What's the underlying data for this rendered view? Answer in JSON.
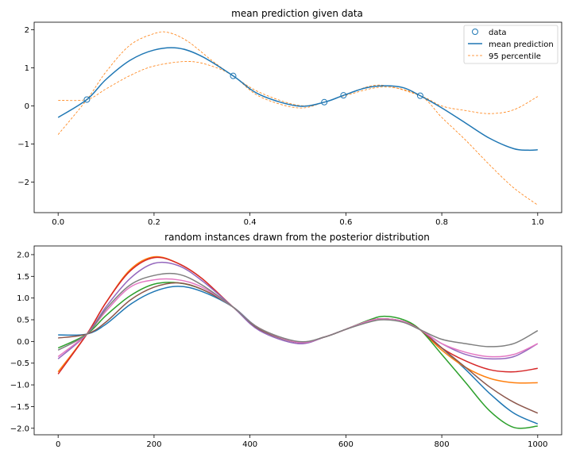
{
  "chart_data": [
    {
      "type": "line",
      "title": "mean prediction given data",
      "xlim": [
        -0.05,
        1.05
      ],
      "ylim": [
        -2.8,
        2.2
      ],
      "xticks": [
        0.0,
        0.2,
        0.4,
        0.6,
        0.8,
        1.0
      ],
      "xtick_labels": [
        "0.0",
        "0.2",
        "0.4",
        "0.6",
        "0.8",
        "1.0"
      ],
      "yticks": [
        -2,
        -1,
        0,
        1,
        2
      ],
      "ytick_labels": [
        "−2",
        "−1",
        "0",
        "1",
        "2"
      ],
      "legend_position": "top-right",
      "colors": {
        "mean": "#1f77b4",
        "percentile": "#ff7f0e"
      },
      "data_points": {
        "name": "data",
        "x": [
          0.06,
          0.365,
          0.555,
          0.595,
          0.755
        ],
        "y": [
          0.17,
          0.79,
          0.1,
          0.28,
          0.27
        ]
      },
      "mean": {
        "name": "mean prediction",
        "x": [
          0.0,
          0.06,
          0.1,
          0.15,
          0.2,
          0.25,
          0.3,
          0.365,
          0.42,
          0.5,
          0.555,
          0.595,
          0.64,
          0.68,
          0.72,
          0.755,
          0.8,
          0.85,
          0.9,
          0.95,
          0.98,
          1.0
        ],
        "y": [
          -0.3,
          0.17,
          0.7,
          1.2,
          1.47,
          1.52,
          1.3,
          0.79,
          0.3,
          0.0,
          0.1,
          0.28,
          0.47,
          0.53,
          0.48,
          0.27,
          -0.05,
          -0.45,
          -0.85,
          -1.12,
          -1.16,
          -1.15
        ]
      },
      "upper": {
        "name": "95 percentile",
        "x": [
          0.0,
          0.06,
          0.1,
          0.15,
          0.2,
          0.23,
          0.27,
          0.32,
          0.365,
          0.42,
          0.5,
          0.555,
          0.6,
          0.67,
          0.755,
          0.8,
          0.85,
          0.9,
          0.95,
          1.0
        ],
        "y": [
          -0.75,
          0.17,
          0.9,
          1.6,
          1.9,
          1.93,
          1.7,
          1.2,
          0.79,
          0.36,
          0.02,
          0.1,
          0.3,
          0.55,
          0.27,
          0.0,
          -0.12,
          -0.2,
          -0.1,
          0.25
        ]
      },
      "lower": {
        "name": "95 percentile",
        "x": [
          0.0,
          0.06,
          0.1,
          0.15,
          0.2,
          0.27,
          0.32,
          0.365,
          0.42,
          0.5,
          0.555,
          0.6,
          0.68,
          0.755,
          0.8,
          0.85,
          0.9,
          0.95,
          1.0
        ],
        "y": [
          0.15,
          0.17,
          0.45,
          0.8,
          1.05,
          1.17,
          1.05,
          0.79,
          0.25,
          -0.05,
          0.1,
          0.28,
          0.5,
          0.27,
          -0.3,
          -0.9,
          -1.55,
          -2.15,
          -2.6
        ]
      }
    },
    {
      "type": "line",
      "title": "random instances drawn from the posterior distribution",
      "xlim": [
        -50,
        1050
      ],
      "ylim": [
        -2.15,
        2.2
      ],
      "xticks": [
        0,
        200,
        400,
        600,
        800,
        1000
      ],
      "xtick_labels": [
        "0",
        "200",
        "400",
        "600",
        "800",
        "1000"
      ],
      "yticks": [
        -2.0,
        -1.5,
        -1.0,
        -0.5,
        0.0,
        0.5,
        1.0,
        1.5,
        2.0
      ],
      "ytick_labels": [
        "−2.0",
        "−1.5",
        "−1.0",
        "−0.5",
        "0.0",
        "0.5",
        "1.0",
        "1.5",
        "2.0"
      ],
      "x": [
        0,
        60,
        100,
        150,
        200,
        250,
        300,
        365,
        420,
        500,
        555,
        600,
        650,
        680,
        720,
        755,
        800,
        850,
        900,
        950,
        1000
      ],
      "series": [
        {
          "color": "#1f77b4",
          "values": [
            0.15,
            0.17,
            0.4,
            0.85,
            1.15,
            1.27,
            1.15,
            0.79,
            0.3,
            -0.02,
            0.1,
            0.28,
            0.48,
            0.52,
            0.46,
            0.27,
            -0.15,
            -0.65,
            -1.2,
            -1.65,
            -1.9
          ]
        },
        {
          "color": "#ff7f0e",
          "values": [
            -0.7,
            0.17,
            0.9,
            1.65,
            1.95,
            1.8,
            1.45,
            0.79,
            0.3,
            -0.02,
            0.1,
            0.28,
            0.48,
            0.52,
            0.46,
            0.27,
            -0.2,
            -0.6,
            -0.85,
            -0.95,
            -0.95
          ]
        },
        {
          "color": "#2ca02c",
          "values": [
            -0.15,
            0.17,
            0.6,
            1.05,
            1.32,
            1.35,
            1.2,
            0.79,
            0.28,
            -0.02,
            0.1,
            0.28,
            0.5,
            0.58,
            0.5,
            0.27,
            -0.3,
            -0.95,
            -1.6,
            -1.98,
            -1.95
          ]
        },
        {
          "color": "#d62728",
          "values": [
            -0.75,
            0.17,
            0.9,
            1.62,
            1.93,
            1.8,
            1.45,
            0.79,
            0.3,
            -0.02,
            0.1,
            0.28,
            0.48,
            0.52,
            0.46,
            0.27,
            -0.15,
            -0.45,
            -0.65,
            -0.7,
            -0.62
          ]
        },
        {
          "color": "#9467bd",
          "values": [
            -0.4,
            0.17,
            0.8,
            1.45,
            1.8,
            1.75,
            1.4,
            0.79,
            0.25,
            -0.05,
            0.1,
            0.28,
            0.48,
            0.52,
            0.46,
            0.27,
            -0.05,
            -0.3,
            -0.4,
            -0.35,
            -0.05
          ]
        },
        {
          "color": "#8c564b",
          "values": [
            0.08,
            0.17,
            0.45,
            0.95,
            1.25,
            1.35,
            1.2,
            0.79,
            0.28,
            -0.02,
            0.1,
            0.28,
            0.48,
            0.52,
            0.46,
            0.27,
            -0.15,
            -0.6,
            -1.05,
            -1.4,
            -1.65
          ]
        },
        {
          "color": "#e377c2",
          "values": [
            -0.35,
            0.17,
            0.7,
            1.25,
            1.42,
            1.42,
            1.25,
            0.79,
            0.3,
            -0.02,
            0.1,
            0.28,
            0.48,
            0.52,
            0.46,
            0.27,
            -0.05,
            -0.25,
            -0.35,
            -0.3,
            -0.05
          ]
        },
        {
          "color": "#7f7f7f",
          "values": [
            -0.2,
            0.17,
            0.75,
            1.3,
            1.52,
            1.55,
            1.3,
            0.79,
            0.3,
            0.0,
            0.1,
            0.28,
            0.45,
            0.5,
            0.44,
            0.27,
            0.05,
            -0.05,
            -0.12,
            -0.05,
            0.25
          ]
        }
      ]
    }
  ],
  "legend": {
    "data": "data",
    "mean": "mean prediction",
    "percentile": "95 percentile"
  }
}
